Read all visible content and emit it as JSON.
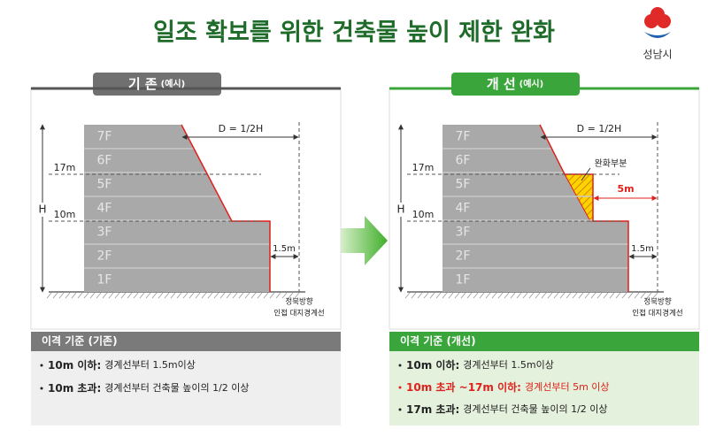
{
  "title": "일조 확보를 위한 건축물 높이 제한 완화",
  "logo": {
    "label": "성남시"
  },
  "panels": [
    {
      "tab_title": "기 존",
      "tab_note": "(예시)",
      "style": "existing",
      "diagram": {
        "floors": [
          "1F",
          "2F",
          "3F",
          "4F",
          "5F",
          "6F",
          "7F"
        ],
        "dimension": "D = 1/2H",
        "height_labels": [
          "17m",
          "10m"
        ],
        "total_height": "H",
        "setback": "1.5m",
        "boundary": [
          "정북방향",
          "인접 대지경계선"
        ]
      },
      "criteria_title": "이격 기준 (기존)",
      "criteria": [
        {
          "label": "10m 이하:",
          "text": "경계선부터 1.5m이상",
          "highlight": false
        },
        {
          "label": "10m 초과:",
          "text": "경계선부터 건축물 높이의 1/2 이상",
          "highlight": false
        }
      ]
    },
    {
      "tab_title": "개 선",
      "tab_note": "(예시)",
      "style": "improved",
      "diagram": {
        "floors": [
          "1F",
          "2F",
          "3F",
          "4F",
          "5F",
          "6F",
          "7F"
        ],
        "dimension": "D = 1/2H",
        "height_labels": [
          "17m",
          "10m"
        ],
        "total_height": "H",
        "setback": "1.5m",
        "boundary": [
          "정북방향",
          "인접 대지경계선"
        ],
        "relief_label": "완화부분",
        "relief_width": "5m"
      },
      "criteria_title": "이격 기준 (개선)",
      "criteria": [
        {
          "label": "10m 이하:",
          "text": "경계선부터 1.5m이상",
          "highlight": false
        },
        {
          "label": "10m 초과 ~17m 이하:",
          "text": "경계선부터 5m 이상",
          "highlight": true
        },
        {
          "label": "17m 초과:",
          "text": "경계선부터 건축물 높이의 1/2 이상",
          "highlight": false
        }
      ]
    }
  ]
}
